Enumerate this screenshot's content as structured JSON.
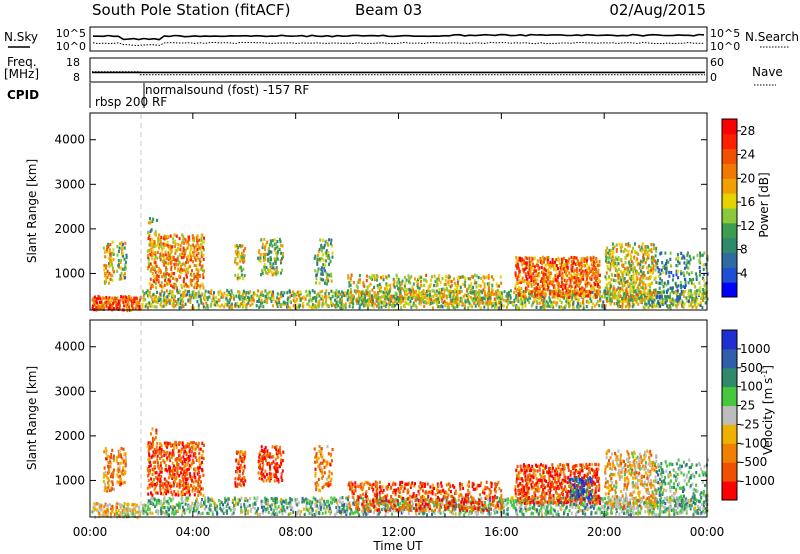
{
  "header": {
    "station": "South Pole Station (fitACF)",
    "beam": "Beam 03",
    "date": "02/Aug/2015"
  },
  "side_labels": {
    "nsky": "N.Sky",
    "freq_line1": "Freq.",
    "freq_line2": "[MHz]",
    "cpid": "CPID",
    "nsearch": "N.Search",
    "nave": "Nave"
  },
  "noise_panel": {
    "left_ticks": [
      "10^5",
      "10^0"
    ],
    "right_ticks": [
      "10^5",
      "10^0"
    ]
  },
  "freq_panel": {
    "left_ticks": [
      "18",
      "8"
    ],
    "right_ticks": [
      "60",
      "0"
    ],
    "freq_mhz_level": 12,
    "nave_level": 18
  },
  "cpid_panel": {
    "programs": [
      {
        "label": "rbsp 200 RF",
        "start_hour": 0.0,
        "end_hour": 1.95
      },
      {
        "label": "normalsound (fost) -157 RF",
        "start_hour": 1.95,
        "end_hour": 24.0
      }
    ]
  },
  "chart_data": [
    {
      "type": "heatmap",
      "parameter": "Power",
      "ylabel": "Slant Range [km]",
      "xlabel": "Time UT",
      "x_ticks": [
        "00:00",
        "04:00",
        "08:00",
        "12:00",
        "16:00",
        "20:00",
        "00:00"
      ],
      "y_ticks": [
        "1000",
        "2000",
        "3000",
        "4000"
      ],
      "xlim_hours": [
        0,
        24
      ],
      "ylim_km": [
        180,
        4600
      ],
      "colorbar": {
        "label": "Power [dB]",
        "ticks": [
          "4",
          "8",
          "12",
          "16",
          "20",
          "24",
          "28"
        ],
        "range": [
          0,
          30
        ],
        "colors": [
          "#0000ff",
          "#1f4fd2",
          "#2f6aa0",
          "#2e8a6a",
          "#3c9c50",
          "#8cc83c",
          "#e6d200",
          "#f0a000",
          "#f07800",
          "#f05000",
          "#ff2000",
          "#ff0000"
        ]
      },
      "clusters": [
        {
          "t0": 0.05,
          "t1": 1.95,
          "r0": 200,
          "r1": 520,
          "mean": 24,
          "density": 0.9
        },
        {
          "t0": 0.5,
          "t1": 0.9,
          "r0": 800,
          "r1": 1750,
          "mean": 18,
          "density": 0.55
        },
        {
          "t0": 1.0,
          "t1": 1.4,
          "r0": 900,
          "r1": 1750,
          "mean": 14,
          "density": 0.45
        },
        {
          "t0": 2.2,
          "t1": 4.4,
          "r0": 700,
          "r1": 1900,
          "mean": 20,
          "density": 0.55
        },
        {
          "t0": 2.2,
          "t1": 2.6,
          "r0": 1900,
          "r1": 2300,
          "mean": 12,
          "density": 0.2
        },
        {
          "t0": 5.6,
          "t1": 6.0,
          "r0": 900,
          "r1": 1700,
          "mean": 16,
          "density": 0.55
        },
        {
          "t0": 6.5,
          "t1": 7.5,
          "r0": 1000,
          "r1": 1800,
          "mean": 14,
          "density": 0.5
        },
        {
          "t0": 8.7,
          "t1": 9.4,
          "r0": 800,
          "r1": 1800,
          "mean": 12,
          "density": 0.4
        },
        {
          "t0": 2.0,
          "t1": 24.0,
          "r0": 260,
          "r1": 650,
          "mean": 14,
          "density": 0.55
        },
        {
          "t0": 10.0,
          "t1": 16.0,
          "r0": 350,
          "r1": 1000,
          "mean": 16,
          "density": 0.4
        },
        {
          "t0": 16.5,
          "t1": 19.8,
          "r0": 500,
          "r1": 1400,
          "mean": 22,
          "density": 0.65
        },
        {
          "t0": 20.0,
          "t1": 22.0,
          "r0": 400,
          "r1": 1700,
          "mean": 16,
          "density": 0.5
        },
        {
          "t0": 22.0,
          "t1": 24.0,
          "r0": 300,
          "r1": 1500,
          "mean": 10,
          "density": 0.3
        }
      ]
    },
    {
      "type": "heatmap",
      "parameter": "Velocity",
      "ylabel": "Slant Range [km]",
      "xlabel": "Time UT",
      "x_ticks": [
        "00:00",
        "04:00",
        "08:00",
        "12:00",
        "16:00",
        "20:00",
        "00:00"
      ],
      "y_ticks": [
        "1000",
        "2000",
        "3000",
        "4000"
      ],
      "xlim_hours": [
        0,
        24
      ],
      "ylim_km": [
        180,
        4600
      ],
      "colorbar": {
        "label_main": "Velocity",
        "label_unit": "[m s",
        "label_exp": "-1",
        "label_close": "]",
        "ticks": [
          "-1000",
          "-500",
          "-100",
          "-25",
          "25",
          "100",
          "500",
          "1000"
        ],
        "colors": [
          "#ff0000",
          "#f05000",
          "#f08000",
          "#f0b000",
          "#bdbdbd",
          "#46c83c",
          "#2e8a6a",
          "#2f5fa8",
          "#1f2fd2"
        ]
      },
      "clusters": [
        {
          "t0": 0.05,
          "t1": 1.95,
          "r0": 200,
          "r1": 520,
          "mean": 3,
          "density": 0.75
        },
        {
          "t0": 0.5,
          "t1": 0.9,
          "r0": 800,
          "r1": 1750,
          "mean": 2,
          "density": 0.55
        },
        {
          "t0": 1.0,
          "t1": 1.4,
          "r0": 900,
          "r1": 1750,
          "mean": 2,
          "density": 0.45
        },
        {
          "t0": 2.2,
          "t1": 4.4,
          "r0": 700,
          "r1": 1900,
          "mean": 1,
          "density": 0.55
        },
        {
          "t0": 2.2,
          "t1": 2.6,
          "r0": 1900,
          "r1": 2300,
          "mean": 2,
          "density": 0.2
        },
        {
          "t0": 5.6,
          "t1": 6.0,
          "r0": 900,
          "r1": 1700,
          "mean": 1,
          "density": 0.55
        },
        {
          "t0": 6.5,
          "t1": 7.5,
          "r0": 1000,
          "r1": 1800,
          "mean": 1,
          "density": 0.5
        },
        {
          "t0": 8.7,
          "t1": 9.4,
          "r0": 800,
          "r1": 1800,
          "mean": 2,
          "density": 0.4
        },
        {
          "t0": 2.0,
          "t1": 24.0,
          "r0": 260,
          "r1": 650,
          "mean": 5,
          "density": 0.5
        },
        {
          "t0": 10.0,
          "t1": 16.0,
          "r0": 350,
          "r1": 1000,
          "mean": 1,
          "density": 0.45
        },
        {
          "t0": 16.5,
          "t1": 19.8,
          "r0": 500,
          "r1": 1400,
          "mean": 1,
          "density": 0.6
        },
        {
          "t0": 18.6,
          "t1": 19.5,
          "r0": 600,
          "r1": 1100,
          "mean": 7,
          "density": 0.6
        },
        {
          "t0": 20.0,
          "t1": 22.0,
          "r0": 400,
          "r1": 1700,
          "mean": 3,
          "density": 0.5
        },
        {
          "t0": 22.0,
          "t1": 24.0,
          "r0": 300,
          "r1": 1500,
          "mean": 5,
          "density": 0.3
        }
      ]
    }
  ]
}
